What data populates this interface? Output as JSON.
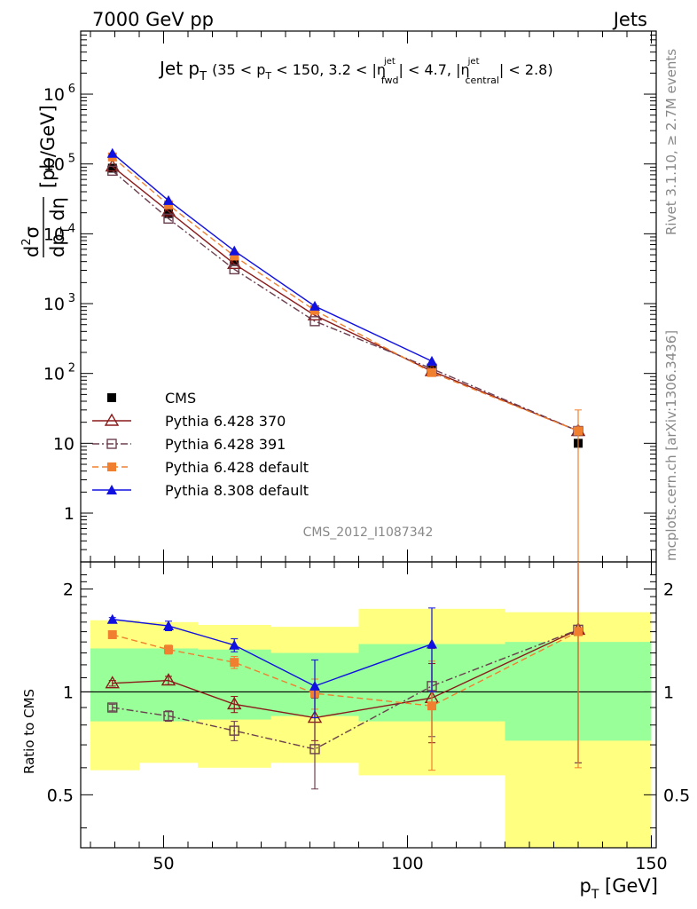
{
  "header": {
    "left": "7000 GeV pp",
    "right": "Jets"
  },
  "side": {
    "rivet": "Rivet 3.1.10, ≥ 2.7M events",
    "mcplots": "mcplots.cern.ch [arXiv:1306.3436]"
  },
  "analysis_id": "CMS_2012_I1087342",
  "chart_data": [
    {
      "type": "scatter",
      "title": "Jet pT (35 < pT < 150, 3.2 < |η_fwd^jet| < 4.7, |η_central^jet| < 2.8)",
      "title_parts": {
        "main": "Jet p",
        "main_sub": "T",
        "cut_open": "(35 < p",
        "cut_sub": "T",
        "cut_mid": " < 150, 3.2 < |η",
        "fwd_sup": "jet",
        "fwd_sub": "fwd",
        "cut_mid2": "| < 4.7, |η",
        "cen_sup": "jet",
        "cen_sub": "central",
        "cut_close": "| < 2.8)"
      },
      "xlabel": "p_T [GeV]",
      "ylabel": "d²σ/dp_T dη [pb/GeV]",
      "xlim": [
        33,
        151
      ],
      "ylim": [
        0.2,
        8000000
      ],
      "log_y": true,
      "x_ticks": [
        "50",
        "100",
        "150"
      ],
      "y_ticks": [
        "1",
        "10",
        "10^2",
        "10^3",
        "10^4",
        "10^5",
        "10^6"
      ],
      "legend_position": "middle-left",
      "x": [
        39.5,
        51,
        64.5,
        81,
        105,
        135
      ],
      "x_edges": [
        35,
        45,
        57,
        72,
        90,
        120,
        150
      ],
      "series": [
        {
          "name": "CMS",
          "color": "#000000",
          "marker": "square-filled",
          "values": [
            87000,
            19500,
            4000,
            810,
            112,
            10
          ]
        },
        {
          "name": "Pythia 6.428 370",
          "color": "#8b1a1a",
          "marker": "triangle-open",
          "values": [
            92000,
            21000,
            3700,
            680,
            108,
            15
          ]
        },
        {
          "name": "Pythia 6.428 391",
          "color": "#6b3f4f",
          "marker": "square-open",
          "values": [
            80000,
            16500,
            3100,
            560,
            117,
            15
          ]
        },
        {
          "name": "Pythia 6.428 default",
          "color": "#f08030",
          "marker": "square-filled",
          "values": [
            126000,
            26000,
            4800,
            800,
            103,
            15
          ]
        },
        {
          "name": "Pythia 8.308 default",
          "color": "#1010e0",
          "marker": "triangle-filled",
          "values": [
            142000,
            30000,
            5700,
            920,
            150,
            null
          ]
        }
      ]
    },
    {
      "type": "scatter",
      "title": "",
      "xlabel": "p_T [GeV]",
      "ylabel": "Ratio to CMS",
      "xlim": [
        33,
        151
      ],
      "ylim": [
        0.35,
        2.4
      ],
      "log_y": true,
      "x_ticks": [
        "50",
        "100",
        "150"
      ],
      "y_ticks": [
        "0.5",
        "1",
        "2"
      ],
      "x": [
        39.5,
        51,
        64.5,
        81,
        105,
        135
      ],
      "uncertainty_bands": {
        "x_edges": [
          35,
          45,
          57,
          72,
          90,
          120,
          150
        ],
        "inner": [
          [
            0.82,
            1.34
          ],
          [
            0.82,
            1.34
          ],
          [
            0.83,
            1.33
          ],
          [
            0.85,
            1.3
          ],
          [
            0.82,
            1.38
          ],
          [
            0.72,
            1.4
          ]
        ],
        "outer": [
          [
            0.59,
            1.62
          ],
          [
            0.62,
            1.6
          ],
          [
            0.6,
            1.57
          ],
          [
            0.62,
            1.55
          ],
          [
            0.57,
            1.75
          ],
          [
            0.35,
            1.71
          ]
        ]
      },
      "series": [
        {
          "name": "Pythia 6.428 370",
          "color": "#8b1a1a",
          "values": [
            1.06,
            1.08,
            0.92,
            0.84,
            0.96,
            1.52
          ],
          "errors": [
            0.02,
            0.03,
            0.05,
            0.12,
            0.25,
            0.9
          ]
        },
        {
          "name": "Pythia 6.428 391",
          "color": "#6b3f4f",
          "values": [
            0.9,
            0.85,
            0.77,
            0.68,
            1.04,
            1.52
          ],
          "errors": [
            0.02,
            0.03,
            0.05,
            0.16,
            0.3,
            0.9
          ]
        },
        {
          "name": "Pythia 6.428 default",
          "color": "#f08030",
          "values": [
            1.47,
            1.33,
            1.22,
            0.99,
            0.91,
            1.5
          ],
          "errors": [
            0.02,
            0.04,
            0.05,
            0.1,
            0.32,
            0.9
          ]
        },
        {
          "name": "Pythia 8.308 default",
          "color": "#1010e0",
          "values": [
            1.63,
            1.56,
            1.37,
            1.04,
            1.38,
            null
          ],
          "errors": [
            0.02,
            0.05,
            0.06,
            0.2,
            0.38,
            null
          ]
        }
      ]
    }
  ]
}
